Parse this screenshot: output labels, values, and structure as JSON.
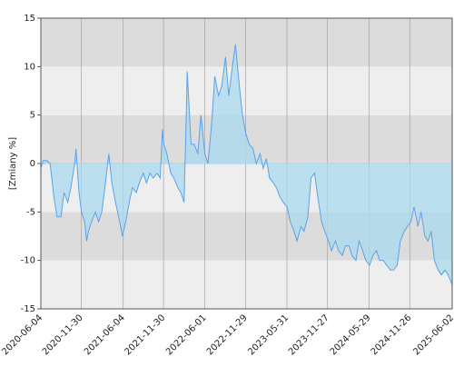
{
  "chart_data": {
    "type": "line",
    "ylabel": "[Zmiany %]",
    "x": [
      "2020-06-04",
      "2020-06-15",
      "2020-07-01",
      "2020-07-15",
      "2020-08-01",
      "2020-08-15",
      "2020-09-01",
      "2020-09-15",
      "2020-10-01",
      "2020-10-15",
      "2020-11-01",
      "2020-11-07",
      "2020-11-20",
      "2020-12-01",
      "2020-12-15",
      "2020-12-24",
      "2021-01-01",
      "2021-01-15",
      "2021-02-01",
      "2021-02-15",
      "2021-03-01",
      "2021-03-15",
      "2021-04-01",
      "2021-04-15",
      "2021-05-01",
      "2021-05-15",
      "2021-06-01",
      "2021-06-15",
      "2021-07-01",
      "2021-07-15",
      "2021-08-01",
      "2021-08-15",
      "2021-09-01",
      "2021-09-15",
      "2021-10-01",
      "2021-10-15",
      "2021-11-01",
      "2021-11-15",
      "2021-11-25",
      "2021-12-01",
      "2021-12-15",
      "2022-01-01",
      "2022-01-15",
      "2022-02-01",
      "2022-02-15",
      "2022-03-01",
      "2022-03-10",
      "2022-03-15",
      "2022-04-01",
      "2022-04-15",
      "2022-05-01",
      "2022-05-15",
      "2022-06-01",
      "2022-06-15",
      "2022-07-01",
      "2022-07-15",
      "2022-08-01",
      "2022-08-15",
      "2022-09-01",
      "2022-09-15",
      "2022-10-01",
      "2022-10-15",
      "2022-11-01",
      "2022-11-15",
      "2022-12-01",
      "2022-12-15",
      "2023-01-01",
      "2023-01-15",
      "2023-02-01",
      "2023-02-15",
      "2023-03-01",
      "2023-03-15",
      "2023-04-01",
      "2023-04-15",
      "2023-05-01",
      "2023-05-15",
      "2023-06-01",
      "2023-06-15",
      "2023-07-01",
      "2023-07-15",
      "2023-08-01",
      "2023-08-15",
      "2023-09-01",
      "2023-09-15",
      "2023-10-01",
      "2023-10-15",
      "2023-11-01",
      "2023-11-15",
      "2023-12-01",
      "2023-12-15",
      "2024-01-01",
      "2024-01-15",
      "2024-02-01",
      "2024-02-15",
      "2024-03-01",
      "2024-03-15",
      "2024-04-01",
      "2024-04-15",
      "2024-05-01",
      "2024-05-15",
      "2024-06-01",
      "2024-06-15",
      "2024-07-01",
      "2024-07-15",
      "2024-08-01",
      "2024-08-15",
      "2024-09-01",
      "2024-09-15",
      "2024-10-01",
      "2024-10-15",
      "2024-11-01",
      "2024-11-15",
      "2024-12-01",
      "2024-12-15",
      "2025-01-01",
      "2025-01-15",
      "2025-02-01",
      "2025-02-15",
      "2025-03-01",
      "2025-03-15",
      "2025-04-01",
      "2025-04-15",
      "2025-05-01",
      "2025-05-15",
      "2025-06-02"
    ],
    "series": [
      {
        "name": "Zmiany",
        "color": "#5aa2ea",
        "fill": "#a9d9ee",
        "values": [
          -0.5,
          0.3,
          0.3,
          0,
          -3.5,
          -5.5,
          -5.5,
          -3,
          -4,
          -2.5,
          0,
          1.5,
          -3,
          -5,
          -6,
          -8,
          -7,
          -6,
          -5,
          -6,
          -5,
          -2.5,
          1,
          -2,
          -4,
          -5.5,
          -7.5,
          -6,
          -4,
          -2.5,
          -3,
          -2,
          -1,
          -2,
          -1,
          -1.5,
          -1,
          -1.5,
          3.5,
          2,
          1,
          -1,
          -1.5,
          -2.5,
          -3,
          -4,
          4,
          9.5,
          2,
          2,
          1,
          5,
          1,
          0,
          4,
          9,
          7,
          8,
          11,
          7,
          10,
          12.3,
          8,
          5,
          3,
          2,
          1.5,
          0,
          1,
          -0.5,
          0.5,
          -1.5,
          -2,
          -2.5,
          -3.5,
          -4,
          -4.5,
          -6,
          -7,
          -8,
          -6.5,
          -7,
          -5.5,
          -1.5,
          -1,
          -3.5,
          -6,
          -7,
          -8,
          -9,
          -8,
          -9,
          -9.5,
          -8.5,
          -8.5,
          -9.5,
          -10,
          -8,
          -9,
          -10,
          -10.5,
          -9.5,
          -9,
          -10,
          -10,
          -10.5,
          -11,
          -11,
          -10.5,
          -8,
          -7,
          -6.5,
          -6,
          -4.5,
          -6.5,
          -5,
          -7.5,
          -8,
          -7,
          -10,
          -11,
          -11.5,
          -11,
          -11.5,
          -12.5
        ]
      }
    ],
    "xlim": [
      "2020-06-04",
      "2025-06-02"
    ],
    "xticks": [
      "2020-06-04",
      "2020-11-30",
      "2021-06-04",
      "2021-11-30",
      "2022-06-01",
      "2022-11-29",
      "2023-05-31",
      "2023-11-27",
      "2024-05-29",
      "2024-11-26",
      "2025-06-02"
    ],
    "ylim": [
      -15,
      15
    ],
    "yticks": [
      -15,
      -10,
      -5,
      0,
      5,
      10,
      15
    ],
    "grid": true
  }
}
